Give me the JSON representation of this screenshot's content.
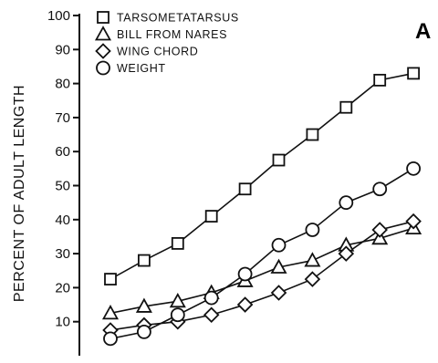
{
  "chart_data": {
    "type": "line",
    "panel_label": "A",
    "ylabel": "PERCENT OF ADULT LENGTH",
    "xlabel": "",
    "ylim": [
      0,
      100
    ],
    "yticks": [
      10,
      20,
      30,
      40,
      50,
      60,
      70,
      80,
      90,
      100
    ],
    "x": [
      1,
      2,
      3,
      4,
      5,
      6,
      7,
      8,
      9,
      10
    ],
    "grid": false,
    "legend_position": "top-left",
    "series": [
      {
        "name": "TARSOMETATARSUS",
        "marker": "square",
        "values": [
          22.5,
          28,
          33,
          41,
          49,
          57.5,
          65,
          73,
          81,
          83
        ]
      },
      {
        "name": "BILL FROM NARES",
        "marker": "triangle",
        "values": [
          12.5,
          14.5,
          16,
          18.5,
          22,
          26,
          28,
          32.5,
          34.5,
          37.5
        ]
      },
      {
        "name": "WING CHORD",
        "marker": "diamond",
        "values": [
          7.5,
          9,
          10,
          12,
          15,
          18.5,
          22.5,
          30,
          37,
          39.5
        ]
      },
      {
        "name": "WEIGHT",
        "marker": "circle",
        "values": [
          5,
          7,
          12,
          17,
          24,
          32.5,
          37,
          45,
          49,
          55
        ]
      }
    ]
  }
}
